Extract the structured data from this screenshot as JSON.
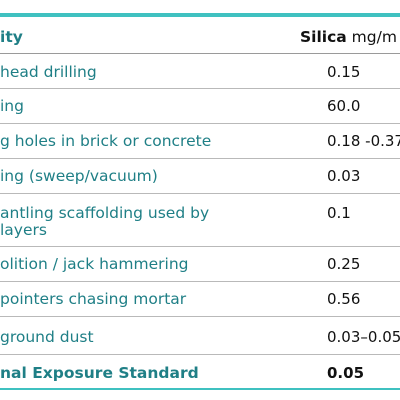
{
  "table": {
    "header": {
      "activity": "ity",
      "silica_bold": "Silica",
      "silica_unit": " mg/m"
    },
    "rows": [
      {
        "activity": "head drilling",
        "value": "0.15"
      },
      {
        "activity": "ing",
        "value": "60.0"
      },
      {
        "activity": "g holes in brick or concrete",
        "value": "0.18 -0.37"
      },
      {
        "activity": "ing (sweep/vacuum)",
        "value": "0.03"
      },
      {
        "activity_line1": "antling scaffolding used by",
        "activity_line2": "layers",
        "value": "0.1"
      },
      {
        "activity": "olition / jack hammering",
        "value": "0.25"
      },
      {
        "activity": "pointers chasing mortar",
        "value": "0.56"
      },
      {
        "activity": "ground dust",
        "value": "0.03–0.05"
      }
    ],
    "standard": {
      "activity": "nal Exposure Standard",
      "value": "0.05"
    }
  },
  "colors": {
    "accent": "#3fc1c0",
    "label_teal": "#1f7f86",
    "value_text": "#111111",
    "rule_grey": "#b9b9b9"
  }
}
